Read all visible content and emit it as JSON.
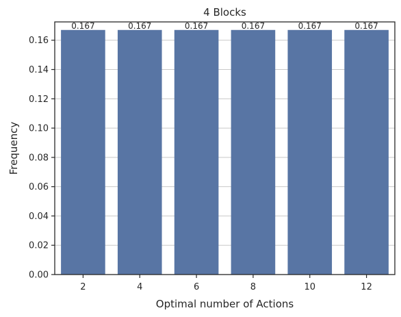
{
  "chart_data": {
    "type": "bar",
    "title": "4 Blocks",
    "xlabel": "Optimal number of Actions",
    "ylabel": "Frequency",
    "categories": [
      "2",
      "4",
      "6",
      "8",
      "10",
      "12"
    ],
    "values": [
      0.167,
      0.167,
      0.167,
      0.167,
      0.167,
      0.167
    ],
    "data_labels": [
      "0.167",
      "0.167",
      "0.167",
      "0.167",
      "0.167",
      "0.167"
    ],
    "ylim": [
      0,
      0.1725
    ],
    "yticks": [
      0.0,
      0.02,
      0.04,
      0.06,
      0.08,
      0.1,
      0.12,
      0.14,
      0.16
    ],
    "ytick_labels": [
      "0.00",
      "0.02",
      "0.04",
      "0.06",
      "0.08",
      "0.10",
      "0.12",
      "0.14",
      "0.16"
    ],
    "grid": "y",
    "bar_color": "#5875a4"
  }
}
